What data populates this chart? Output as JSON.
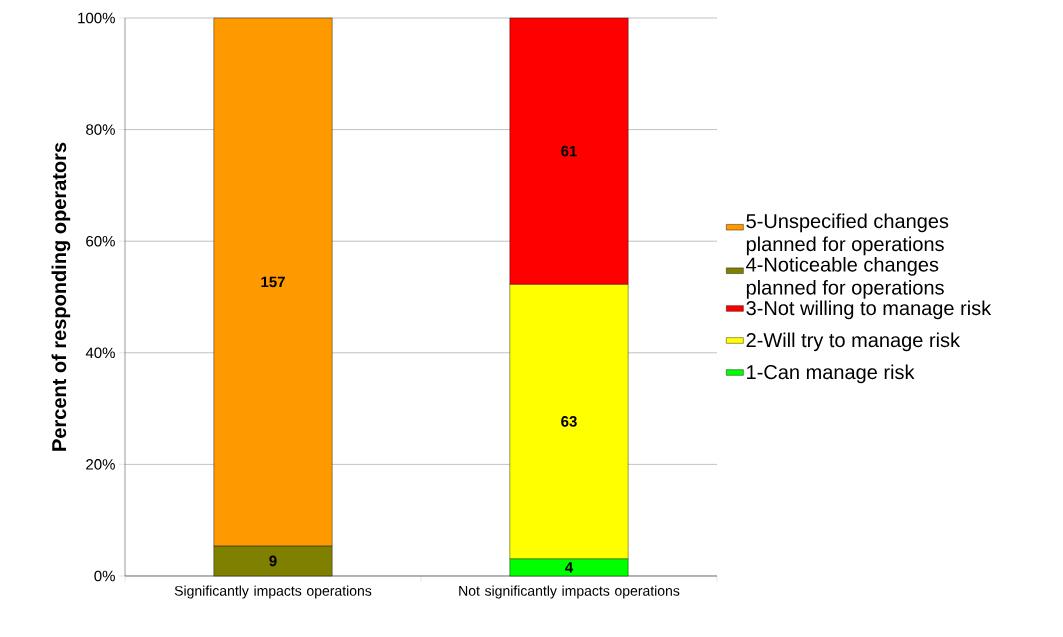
{
  "chart_data": {
    "type": "bar",
    "stacked": true,
    "ylabel": "Percent of responding operators",
    "categories": [
      "Significantly impacts operations",
      "Not significantly impacts operations"
    ],
    "series": [
      {
        "name": "1-Can manage risk",
        "color": "#00ff00",
        "values": [
          null,
          3.1
        ]
      },
      {
        "name": "2-Will try to manage risk",
        "color": "#ffff00",
        "values": [
          null,
          49.2
        ]
      },
      {
        "name": "3-Not willing to manage risk",
        "color": "#ff0000",
        "values": [
          null,
          47.7
        ]
      },
      {
        "name": "4-Noticeable changes planned for operations",
        "color": "#808000",
        "values": [
          5.4,
          null
        ]
      },
      {
        "name": "5-Unspecified changes planned for operations",
        "color": "#ff9900",
        "values": [
          94.6,
          null
        ]
      }
    ],
    "annotations": [
      "4",
      "63",
      "61",
      "9",
      "157"
    ],
    "ylim": [
      0,
      100
    ],
    "yticks": [
      {
        "value": 0,
        "label": "0%"
      },
      {
        "value": 20,
        "label": "20%"
      },
      {
        "value": 40,
        "label": "40%"
      },
      {
        "value": 60,
        "label": "60%"
      },
      {
        "value": 80,
        "label": "80%"
      },
      {
        "value": 100,
        "label": "100%"
      }
    ],
    "grid": "y",
    "legend": "right"
  }
}
